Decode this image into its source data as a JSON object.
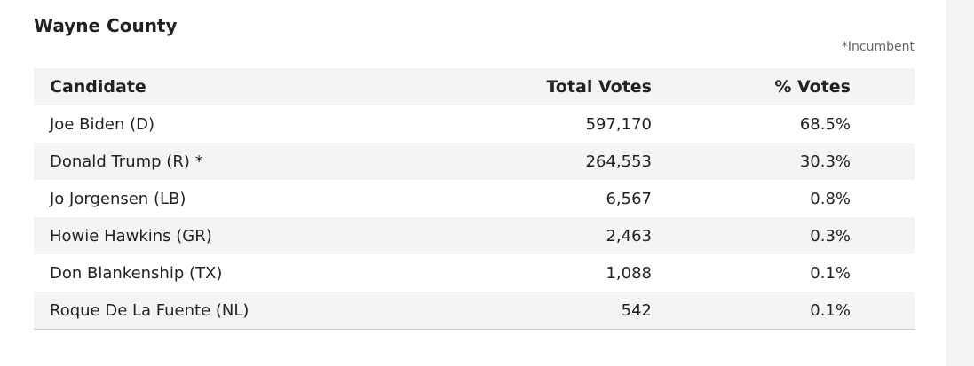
{
  "header": {
    "title": "Wayne County",
    "note": "*Incumbent"
  },
  "table": {
    "columns": [
      "Candidate",
      "Total Votes",
      "% Votes"
    ],
    "rows": [
      [
        "Joe Biden (D)",
        "597,170",
        "68.5%"
      ],
      [
        "Donald Trump (R) *",
        "264,553",
        "30.3%"
      ],
      [
        "Jo Jorgensen (LB)",
        "6,567",
        "0.8%"
      ],
      [
        "Howie Hawkins (GR)",
        "2,463",
        "0.3%"
      ],
      [
        "Don Blankenship (TX)",
        "1,088",
        "0.1%"
      ],
      [
        "Roque De La Fuente (NL)",
        "542",
        "0.1%"
      ]
    ]
  }
}
